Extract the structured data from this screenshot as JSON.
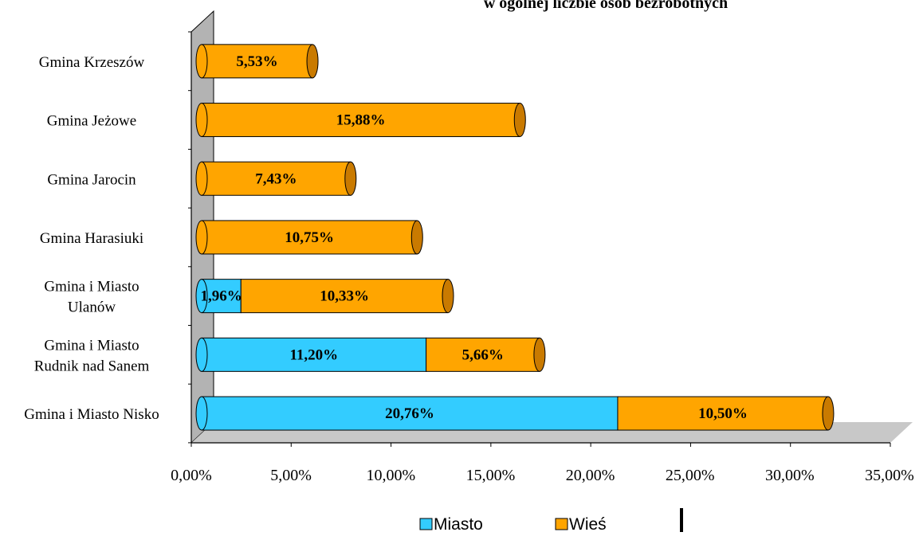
{
  "chart_data": {
    "type": "bar",
    "orientation": "horizontal",
    "stacked": true,
    "title": "w ogólnej liczbie osób bezrobotnych",
    "categories": [
      "Gmina Krzeszów",
      "Gmina Jeżowe",
      "Gmina Jarocin",
      "Gmina Harasiuki",
      "Gmina i Miasto Ulanów",
      "Gmina i Miasto Rudnik nad Sanem",
      "Gmina i Miasto Nisko"
    ],
    "series": [
      {
        "name": "Miasto",
        "color": "#33CCFF",
        "values": [
          null,
          null,
          null,
          null,
          1.96,
          11.2,
          20.76
        ],
        "labels": [
          "",
          "",
          "",
          "",
          "1,96%",
          "11,20%",
          "20,76%"
        ]
      },
      {
        "name": "Wieś",
        "color": "#FFA500",
        "values": [
          5.53,
          15.88,
          7.43,
          10.75,
          10.33,
          5.66,
          10.5
        ],
        "labels": [
          "5,53%",
          "15,88%",
          "7,43%",
          "10,75%",
          "10,33%",
          "5,66%",
          "10,50%"
        ]
      }
    ],
    "xlim": [
      0,
      35
    ],
    "x_ticks": [
      0,
      5,
      10,
      15,
      20,
      25,
      30,
      35
    ],
    "x_tick_labels": [
      "0,00%",
      "5,00%",
      "10,00%",
      "15,00%",
      "20,00%",
      "25,00%",
      "30,00%",
      "35,00%"
    ],
    "grid": false,
    "legend_position": "bottom"
  },
  "colors": {
    "miasto": "#33CCFF",
    "miasto_dark": "#1E9DC7",
    "wies": "#FFA500",
    "wies_dark": "#C97A00",
    "wall": "#B3B3B3",
    "floor": "#C8C8C8"
  }
}
